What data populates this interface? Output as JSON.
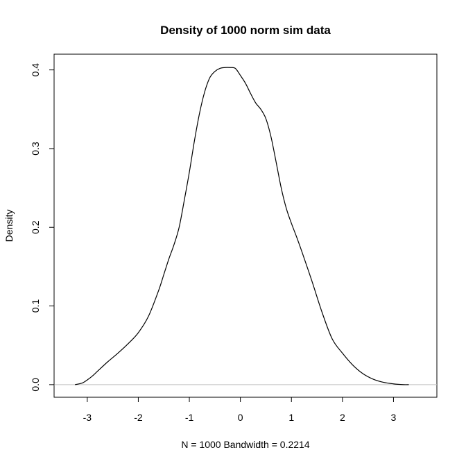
{
  "chart_data": {
    "type": "line",
    "title": "Density of 1000 norm sim data",
    "xlabel": "N = 1000   Bandwidth = 0.2214",
    "ylabel": "Density",
    "xlim": [
      -3.65,
      3.85
    ],
    "ylim": [
      -0.016,
      0.42
    ],
    "x_ticks": [
      -3,
      -2,
      -1,
      0,
      1,
      2,
      3
    ],
    "x_tick_labels": [
      "-3",
      "-2",
      "-1",
      "0",
      "1",
      "2",
      "3"
    ],
    "y_ticks": [
      0.0,
      0.1,
      0.2,
      0.3,
      0.4
    ],
    "y_tick_labels": [
      "0.0",
      "0.1",
      "0.2",
      "0.3",
      "0.4"
    ],
    "grid": false,
    "baseline": 0,
    "baseline_color": "#c0c0c0",
    "line_color": "#000000",
    "series": [
      {
        "x": [
          -3.24,
          -3.1,
          -3.0,
          -2.9,
          -2.8,
          -2.6,
          -2.4,
          -2.2,
          -2.0,
          -1.8,
          -1.6,
          -1.5,
          -1.4,
          -1.3,
          -1.2,
          -1.1,
          -1.0,
          -0.9,
          -0.8,
          -0.7,
          -0.6,
          -0.5,
          -0.4,
          -0.3,
          -0.2,
          -0.1,
          0.0,
          0.1,
          0.2,
          0.3,
          0.4,
          0.5,
          0.6,
          0.7,
          0.8,
          0.9,
          1.0,
          1.1,
          1.2,
          1.4,
          1.6,
          1.8,
          2.0,
          2.2,
          2.4,
          2.6,
          2.8,
          3.0,
          3.2,
          3.3
        ],
        "y": [
          0.0,
          0.002,
          0.006,
          0.011,
          0.017,
          0.029,
          0.04,
          0.052,
          0.066,
          0.087,
          0.12,
          0.14,
          0.16,
          0.178,
          0.2,
          0.234,
          0.27,
          0.31,
          0.345,
          0.372,
          0.39,
          0.398,
          0.402,
          0.403,
          0.403,
          0.402,
          0.393,
          0.383,
          0.37,
          0.358,
          0.35,
          0.338,
          0.315,
          0.283,
          0.25,
          0.224,
          0.205,
          0.188,
          0.17,
          0.132,
          0.092,
          0.058,
          0.04,
          0.025,
          0.014,
          0.007,
          0.003,
          0.001,
          0.0,
          0.0
        ]
      }
    ]
  }
}
